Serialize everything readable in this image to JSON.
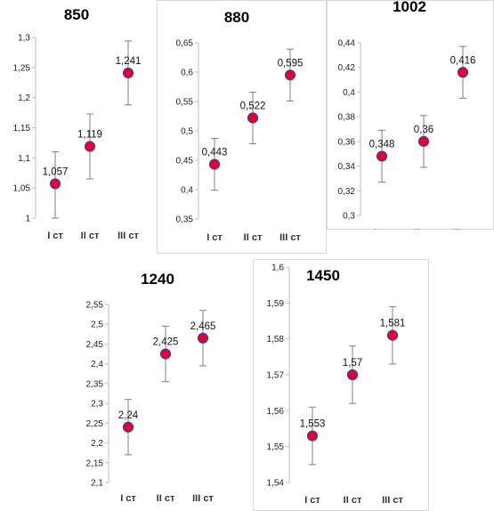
{
  "chart_data": [
    {
      "type": "scatter",
      "title": "850",
      "categories": [
        "I ст",
        "II ст",
        "III ст"
      ],
      "values": [
        1.057,
        1.119,
        1.241
      ],
      "value_labels": [
        "1,057",
        "1,119",
        "1,241"
      ],
      "error_low": [
        1.0,
        1.065,
        1.188
      ],
      "error_high": [
        1.11,
        1.173,
        1.294
      ],
      "ylim": [
        1,
        1.3
      ],
      "yticks": [
        "1",
        "1,05",
        "1,1",
        "1,15",
        "1,2",
        "1,25",
        "1,3"
      ],
      "marker_fill": "#e8002d",
      "marker_stroke": "#3d3da8"
    },
    {
      "type": "scatter",
      "title": "880",
      "categories": [
        "I ст",
        "II ст",
        "III ст"
      ],
      "values": [
        0.443,
        0.522,
        0.595
      ],
      "value_labels": [
        "0,443",
        "0,522",
        "0,595"
      ],
      "error_low": [
        0.399,
        0.478,
        0.551
      ],
      "error_high": [
        0.487,
        0.566,
        0.639
      ],
      "ylim": [
        0.35,
        0.65
      ],
      "yticks": [
        "0,35",
        "0,4",
        "0,45",
        "0,5",
        "0,55",
        "0,6",
        "0,65"
      ],
      "marker_fill": "#e8002d",
      "marker_stroke": "#3d3da8"
    },
    {
      "type": "scatter",
      "title": "1002",
      "categories": [
        "I ст",
        "II ст",
        "III ст"
      ],
      "values": [
        0.348,
        0.36,
        0.416
      ],
      "value_labels": [
        "0,348",
        "0,36",
        "0,416"
      ],
      "error_low": [
        0.327,
        0.339,
        0.395
      ],
      "error_high": [
        0.369,
        0.381,
        0.437
      ],
      "ylim": [
        0.3,
        0.44
      ],
      "yticks": [
        "0,3",
        "0,32",
        "0,34",
        "0,36",
        "0,38",
        "0,4",
        "0,42",
        "0,44"
      ],
      "marker_fill": "#e8002d",
      "marker_stroke": "#3d3da8"
    },
    {
      "type": "scatter",
      "title": "1240",
      "categories": [
        "I ст",
        "II ст",
        "III ст"
      ],
      "values": [
        2.24,
        2.425,
        2.465
      ],
      "value_labels": [
        "2,24",
        "2,425",
        "2,465"
      ],
      "error_low": [
        2.17,
        2.355,
        2.395
      ],
      "error_high": [
        2.31,
        2.495,
        2.535
      ],
      "ylim": [
        2.1,
        2.55
      ],
      "yticks": [
        "2,1",
        "2,15",
        "2,2",
        "2,25",
        "2,3",
        "2,35",
        "2,4",
        "2,45",
        "2,5",
        "2,55"
      ],
      "marker_fill": "#e8002d",
      "marker_stroke": "#3d3da8"
    },
    {
      "type": "scatter",
      "title": "1450",
      "categories": [
        "I ст",
        "II ст",
        "III ст"
      ],
      "values": [
        1.553,
        1.57,
        1.581
      ],
      "value_labels": [
        "1,553",
        "1,57",
        "1,581"
      ],
      "error_low": [
        1.545,
        1.562,
        1.573
      ],
      "error_high": [
        1.561,
        1.578,
        1.589
      ],
      "ylim": [
        1.54,
        1.6
      ],
      "yticks": [
        "1,54",
        "1,55",
        "1,56",
        "1,57",
        "1,58",
        "1,59",
        "1,6"
      ],
      "marker_fill": "#e8002d",
      "marker_stroke": "#3d3da8"
    }
  ]
}
